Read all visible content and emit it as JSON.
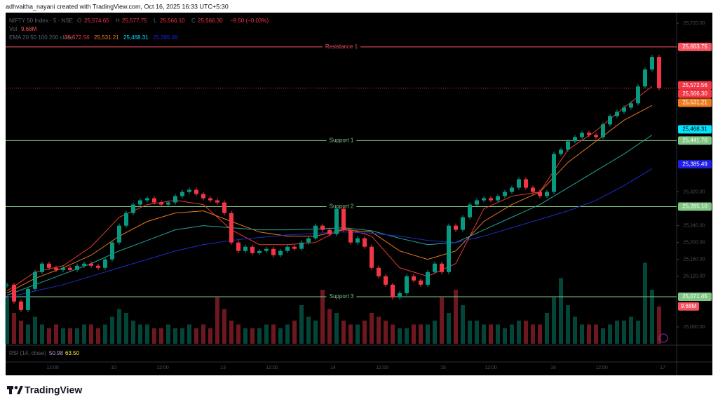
{
  "header": {
    "credit": "adhvaitha_nayani created with TradingView.com, Oct 16, 2025 16:33 UTC+5:30"
  },
  "legend": {
    "symbol": "NIFTY 50 Index · 5 · NSE",
    "ohlc": [
      {
        "key": "O",
        "text": "25,574.65"
      },
      {
        "key": "H",
        "text": "25,577.75"
      },
      {
        "key": "L",
        "text": "25,566.10"
      },
      {
        "key": "C",
        "text": "25,566.30"
      }
    ],
    "change": "−8.50 (−0.03%)",
    "vol_key": "Vol",
    "ema_key": "EMA 20 50 100 200 close",
    "rsi_key": "RSI (14, close)",
    "rsi_values": [
      "50.98",
      "63.50"
    ]
  },
  "chart_data": {
    "type": "candlestick",
    "ylim": [
      24960,
      25745
    ],
    "yticks": [
      {
        "value": 25720,
        "label": "25,720.00"
      },
      {
        "value": 25320,
        "label": "25,320.00"
      },
      {
        "value": 25240,
        "label": "25,240.00"
      },
      {
        "value": 25200,
        "label": "25,200.00"
      },
      {
        "value": 25160,
        "label": "25,160.00"
      },
      {
        "value": 25120,
        "label": "25,120.00"
      },
      {
        "value": 25000,
        "label": "25,000.00"
      }
    ],
    "time_labels": [
      "12:00",
      "10",
      "12:00",
      "13",
      "12:00",
      "14",
      "12:00",
      "15",
      "12:00",
      "16",
      "12:00",
      "17"
    ],
    "up_color": "#089981",
    "down_color": "#f23645",
    "close": [
      25100,
      25060,
      25040,
      25090,
      25130,
      25150,
      25140,
      25135,
      25140,
      25135,
      25145,
      25150,
      25145,
      25140,
      25160,
      25200,
      25240,
      25270,
      25290,
      25300,
      25305,
      25295,
      25290,
      25295,
      25310,
      25320,
      25325,
      25315,
      25305,
      25300,
      25295,
      25270,
      25200,
      25180,
      25190,
      25175,
      25180,
      25185,
      25170,
      25180,
      25190,
      25185,
      25200,
      25210,
      25240,
      25230,
      25220,
      25280,
      25230,
      25200,
      25210,
      25190,
      25140,
      25120,
      25100,
      25070,
      25080,
      25120,
      25110,
      25100,
      25130,
      25150,
      25130,
      25240,
      25230,
      25260,
      25290,
      25300,
      25305,
      25300,
      25310,
      25320,
      25330,
      25350,
      25330,
      25320,
      25310,
      25320,
      25410,
      25420,
      25440,
      25450,
      25460,
      25455,
      25450,
      25480,
      25500,
      25510,
      25520,
      25530,
      25570,
      25610,
      25640,
      25566.3
    ],
    "volume": [
      12,
      8,
      6,
      5,
      7,
      5,
      4,
      5,
      4,
      4,
      4,
      5,
      5,
      4,
      5,
      7,
      9,
      8,
      6,
      5,
      5,
      4,
      4,
      5,
      4,
      4,
      5,
      4,
      5,
      4,
      12,
      9,
      6,
      5,
      4,
      4,
      4,
      5,
      5,
      4,
      5,
      6,
      10,
      7,
      6,
      14,
      9,
      8,
      6,
      5,
      5,
      6,
      8,
      7,
      6,
      5,
      4,
      4,
      5,
      5,
      5,
      6,
      12,
      8,
      14,
      10,
      6,
      6,
      5,
      5,
      5,
      4,
      5,
      6,
      6,
      5,
      5,
      8,
      12,
      17,
      10,
      7,
      5,
      5,
      5,
      4,
      5,
      6,
      6,
      7,
      6,
      21,
      14,
      9.68
    ],
    "volume_badge": "9.68M",
    "volume_badge_color": "#f7525f",
    "series": [
      {
        "color": "#e53935",
        "values": [
          25085,
          25130,
          25145,
          25190,
          25260,
          25290,
          25300,
          25290,
          25230,
          25195,
          25195,
          25200,
          25235,
          25215,
          25140,
          25120,
          25150,
          25280,
          25310,
          25320,
          25420,
          25465,
          25520,
          25570
        ]
      },
      {
        "color": "#e8771f",
        "values": [
          25080,
          25115,
          25140,
          25170,
          25215,
          25250,
          25270,
          25275,
          25250,
          25225,
          25215,
          25215,
          25230,
          25225,
          25180,
          25160,
          25180,
          25250,
          25290,
          25320,
          25390,
          25440,
          25490,
          25525
        ]
      },
      {
        "color": "#26a69a",
        "values": [
          25075,
          25100,
          25125,
          25150,
          25180,
          25205,
          25230,
          25240,
          25235,
          25230,
          25230,
          25232,
          25235,
          25228,
          25210,
          25195,
          25200,
          25230,
          25260,
          25290,
          25330,
          25370,
          25410,
          25455
        ]
      },
      {
        "color": "#1e2cc8",
        "values": [
          25070,
          25085,
          25100,
          25120,
          25140,
          25160,
          25180,
          25195,
          25205,
          25212,
          25218,
          25222,
          25225,
          25222,
          25215,
          25205,
          25200,
          25215,
          25235,
          25255,
          25275,
          25300,
          25335,
          25375
        ]
      }
    ],
    "levels": [
      {
        "name": "Resistance 1",
        "value": 25663.75,
        "label": "25,663.75",
        "color": "#f7525f"
      },
      {
        "name": "Support 1",
        "value": 25441.7,
        "label": "25,441.70",
        "color": "#81c784"
      },
      {
        "name": "Support 2",
        "value": 25285.1,
        "label": "25,285.10",
        "color": "#81c784"
      },
      {
        "name": "Support 3",
        "value": 25071.45,
        "label": "25,071.45",
        "color": "#81c784"
      }
    ],
    "price_badges": [
      {
        "value": 25572.56,
        "label": "25,572.56",
        "color": "#f23645"
      },
      {
        "value": 25566.3,
        "label": "25,566.30",
        "color": "#f23645"
      },
      {
        "value": 25531.21,
        "label": "25,531.21",
        "color": "#ef7b1c"
      },
      {
        "value": 25468.31,
        "label": "25,468.31",
        "color": "#00e5ff"
      },
      {
        "value": 25385.49,
        "label": "25,385.49",
        "color": "#1e1ee6"
      }
    ]
  },
  "footer": {
    "brand": "TradingView"
  }
}
